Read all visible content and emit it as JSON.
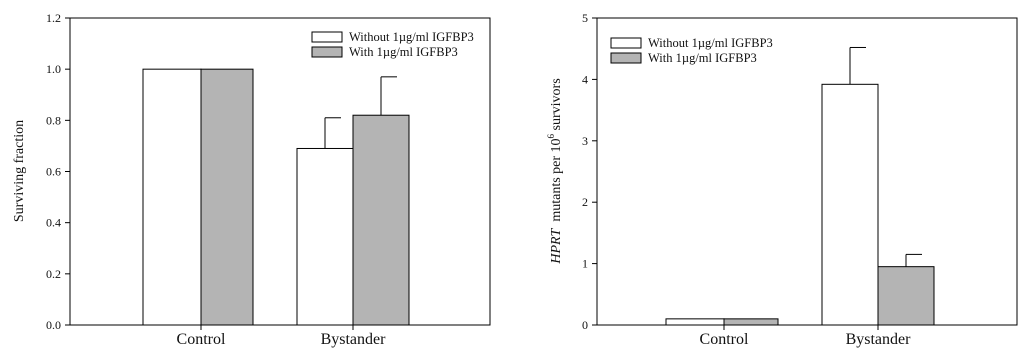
{
  "colors": {
    "without": "#ffffff",
    "with": "#b4b4b4",
    "stroke": "#000000"
  },
  "chart_data": [
    {
      "type": "bar",
      "title": "",
      "xlabel": "",
      "ylabel": "Surviving fraction",
      "ylim": [
        0,
        1.2
      ],
      "yticks": [
        "0.0",
        "0.2",
        "0.4",
        "0.6",
        "0.8",
        "1.0",
        "1.2"
      ],
      "categories": [
        "Control",
        "Bystander"
      ],
      "series": [
        {
          "name": "Without 1µg/ml IGFBP3",
          "values": [
            1.0,
            0.69
          ],
          "errors": [
            0,
            0.12
          ]
        },
        {
          "name": "With 1µg/ml IGFBP3",
          "values": [
            1.0,
            0.82
          ],
          "errors": [
            0,
            0.15
          ]
        }
      ],
      "legend_position": "top-right"
    },
    {
      "type": "bar",
      "title": "",
      "xlabel": "",
      "ylabel_italic": "HPRT",
      "ylabel_rest": "mutants per 10",
      "ylabel_sup": "6",
      "ylabel_tail": "survivors",
      "ylim": [
        0,
        5
      ],
      "yticks": [
        "0",
        "1",
        "2",
        "3",
        "4",
        "5"
      ],
      "categories": [
        "Control",
        "Bystander"
      ],
      "series": [
        {
          "name": "Without 1µg/ml IGFBP3",
          "values": [
            0.1,
            3.92
          ],
          "errors": [
            0,
            0.6
          ]
        },
        {
          "name": "With 1µg/ml IGFBP3",
          "values": [
            0.1,
            0.95
          ],
          "errors": [
            0,
            0.2
          ]
        }
      ],
      "legend_position": "top-left"
    }
  ]
}
